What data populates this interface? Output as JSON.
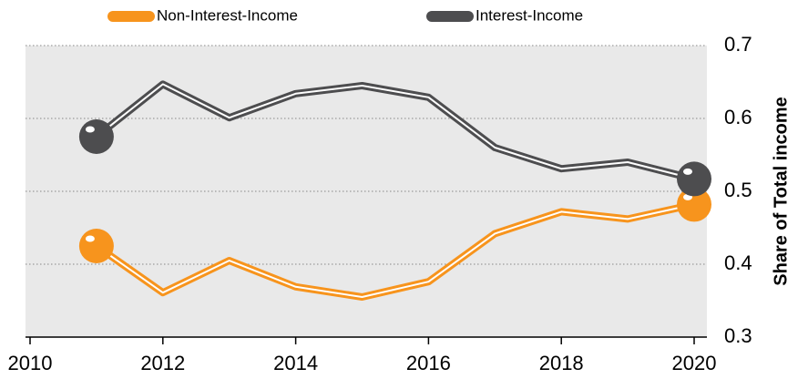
{
  "chart_data": {
    "type": "line",
    "x": [
      2011,
      2012,
      2013,
      2014,
      2015,
      2016,
      2017,
      2018,
      2019,
      2020
    ],
    "series": [
      {
        "name": "Non-Interest-Income",
        "color": "#f7941d",
        "values": [
          0.425,
          0.361,
          0.405,
          0.369,
          0.355,
          0.376,
          0.442,
          0.472,
          0.462,
          0.482
        ]
      },
      {
        "name": "Interest-Income",
        "color": "#4d4d4f",
        "values": [
          0.575,
          0.647,
          0.601,
          0.634,
          0.645,
          0.629,
          0.56,
          0.531,
          0.54,
          0.517
        ]
      }
    ],
    "xlim": [
      2010,
      2020
    ],
    "xticks": [
      2010,
      2012,
      2014,
      2016,
      2018,
      2020
    ],
    "ylim": [
      0.3,
      0.7
    ],
    "yticks": [
      0.3,
      0.4,
      0.5,
      0.6,
      0.7
    ],
    "y_label": "Share of Total income",
    "grid": true
  }
}
